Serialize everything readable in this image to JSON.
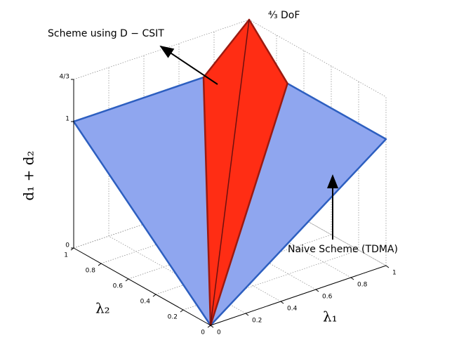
{
  "chart_data": {
    "type": "surface3d",
    "xlabel": "λ₁",
    "ylabel": "λ₂",
    "zlabel": "d₁ + d₂",
    "xlim": [
      0,
      1
    ],
    "ylim": [
      0,
      1
    ],
    "zlim": [
      0,
      1.3333
    ],
    "xticks": [
      0,
      0.2,
      0.4,
      0.6,
      0.8,
      1
    ],
    "yticks": [
      0,
      0.2,
      0.4,
      0.6,
      0.8,
      1
    ],
    "zticks": [
      0,
      1,
      {
        "value": 1.3333,
        "label": "4/3"
      }
    ],
    "grid": true,
    "surfaces": [
      {
        "color": "#8fa6ef",
        "edge_color": "#2d5fc0",
        "x": [
          0,
          1,
          1,
          0
        ],
        "y": [
          0,
          0,
          1,
          1
        ],
        "z": [
          0,
          1,
          1,
          1
        ]
      },
      {
        "color": "#ff2d14",
        "edge_color": "#9c1a10",
        "x": [
          0,
          0.74,
          1,
          1
        ],
        "y": [
          0,
          1,
          1,
          0.72
        ],
        "z": [
          0,
          1,
          1.3333,
          1
        ]
      }
    ],
    "annotations": [
      "Scheme using D − CSIT",
      "⁴⁄₃ DoF",
      "Naive Scheme (TDMA)"
    ]
  }
}
